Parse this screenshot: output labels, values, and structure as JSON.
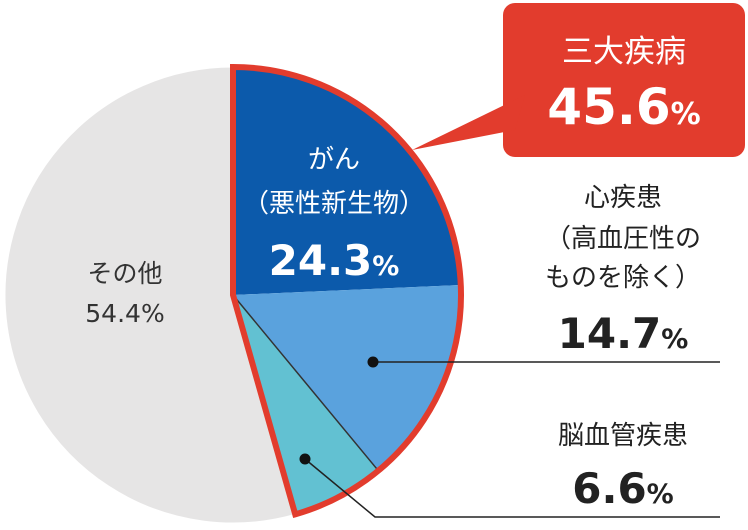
{
  "chart_data": {
    "type": "pie",
    "slices": [
      {
        "label": "その他",
        "value": 54.4,
        "value_text": "54.4%",
        "color": "#e6e5e5"
      },
      {
        "label": "がん",
        "sublabel": "（悪性新生物）",
        "value": 24.3,
        "value_num": "24.3",
        "unit": "%",
        "color": "#0c5aab"
      },
      {
        "label": "心疾患",
        "sublabel_lines": [
          "（高血圧性の",
          "ものを除く）"
        ],
        "value": 14.7,
        "value_num": "14.7",
        "unit": "%",
        "color": "#5aa2dd"
      },
      {
        "label": "脳血管疾患",
        "value": 6.6,
        "value_num": "6.6",
        "unit": "%",
        "color": "#62c1d2"
      }
    ],
    "callout": {
      "label": "三大疾病",
      "value_num": "45.6",
      "unit": "%",
      "color": "#e23c2d"
    },
    "highlight_color": "#e23c2d"
  }
}
